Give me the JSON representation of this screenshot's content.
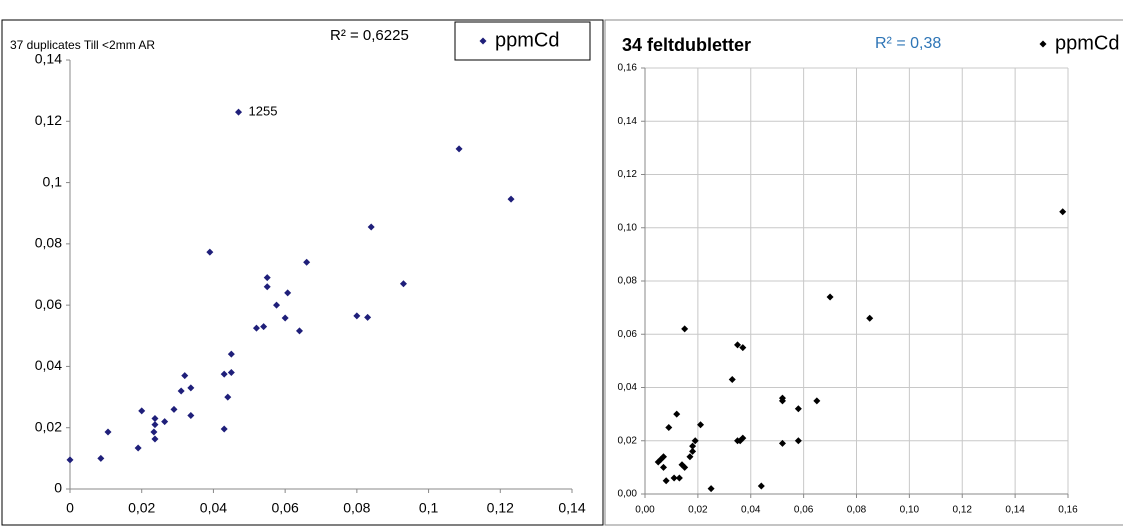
{
  "chart_data": [
    {
      "type": "scatter",
      "title": "37 duplicates Till <2mm  AR",
      "r_squared_label": "R² = 0,6225",
      "point_label": "1255",
      "grid": false,
      "series": [
        {
          "name": "ppmCd",
          "color": "#1f1f7a",
          "x": [
            0,
            0.0086,
            0.0106,
            0.019,
            0.02,
            0.0234,
            0.0237,
            0.0237,
            0.0237,
            0.0264,
            0.029,
            0.031,
            0.032,
            0.0337,
            0.0337,
            0.039,
            0.043,
            0.043,
            0.044,
            0.045,
            0.045,
            0.047,
            0.052,
            0.054,
            0.055,
            0.055,
            0.0576,
            0.06,
            0.0607,
            0.064,
            0.066,
            0.08,
            0.083,
            0.084,
            0.093,
            0.1085,
            0.123
          ],
          "values": [
            0.0095,
            0.01,
            0.0186,
            0.0134,
            0.0255,
            0.0186,
            0.021,
            0.023,
            0.0163,
            0.022,
            0.026,
            0.032,
            0.037,
            0.033,
            0.024,
            0.0773,
            0.0196,
            0.0375,
            0.03,
            0.038,
            0.044,
            0.123,
            0.0525,
            0.053,
            0.069,
            0.066,
            0.06,
            0.0558,
            0.064,
            0.0516,
            0.074,
            0.0565,
            0.056,
            0.0855,
            0.067,
            0.111,
            0.0946
          ]
        }
      ],
      "xlim": [
        0,
        0.14
      ],
      "ylim": [
        0,
        0.14
      ],
      "xticks": [
        0,
        {
          "value": 0.02,
          "label": "0,02"
        },
        {
          "value": 0.04,
          "label": "0,04"
        },
        {
          "value": 0.06,
          "label": "0,06"
        },
        {
          "value": 0.08,
          "label": "0,08"
        },
        {
          "value": 0.1,
          "label": "0,1"
        },
        {
          "value": 0.12,
          "label": "0,12"
        },
        {
          "value": 0.14,
          "label": "0,14"
        }
      ],
      "yticks": [
        0,
        {
          "value": 0.02,
          "label": "0,02"
        },
        {
          "value": 0.04,
          "label": "0,04"
        },
        {
          "value": 0.06,
          "label": "0,06"
        },
        {
          "value": 0.08,
          "label": "0,08"
        },
        {
          "value": 0.1,
          "label": "0,1"
        },
        {
          "value": 0.12,
          "label": "0,12"
        },
        {
          "value": 0.14,
          "label": "0,14"
        }
      ]
    },
    {
      "type": "scatter",
      "title": "34 feltdubletter",
      "r_squared_label": "R² = 0,38",
      "grid": true,
      "series": [
        {
          "name": "ppmCd",
          "color": "#000000",
          "x": [
            0.005,
            0.006,
            0.007,
            0.007,
            0.008,
            0.009,
            0.011,
            0.012,
            0.013,
            0.014,
            0.015,
            0.015,
            0.017,
            0.018,
            0.018,
            0.019,
            0.021,
            0.025,
            0.033,
            0.035,
            0.035,
            0.036,
            0.037,
            0.037,
            0.044,
            0.052,
            0.052,
            0.052,
            0.058,
            0.058,
            0.065,
            0.07,
            0.085,
            0.158
          ],
          "values": [
            0.012,
            0.013,
            0.014,
            0.01,
            0.005,
            0.025,
            0.006,
            0.03,
            0.006,
            0.011,
            0.01,
            0.062,
            0.014,
            0.016,
            0.018,
            0.02,
            0.026,
            0.002,
            0.043,
            0.056,
            0.02,
            0.02,
            0.055,
            0.021,
            0.003,
            0.036,
            0.035,
            0.019,
            0.02,
            0.032,
            0.035,
            0.074,
            0.066,
            0.106
          ]
        }
      ],
      "xlim": [
        0,
        0.16
      ],
      "ylim": [
        0,
        0.16
      ],
      "xticks": [
        {
          "value": 0,
          "label": "0,00"
        },
        {
          "value": 0.02,
          "label": "0,02"
        },
        {
          "value": 0.04,
          "label": "0,04"
        },
        {
          "value": 0.06,
          "label": "0,06"
        },
        {
          "value": 0.08,
          "label": "0,08"
        },
        {
          "value": 0.1,
          "label": "0,10"
        },
        {
          "value": 0.12,
          "label": "0,12"
        },
        {
          "value": 0.14,
          "label": "0,14"
        },
        {
          "value": 0.16,
          "label": "0,16"
        }
      ],
      "yticks": [
        {
          "value": 0,
          "label": "0,00"
        },
        {
          "value": 0.02,
          "label": "0,02"
        },
        {
          "value": 0.04,
          "label": "0,04"
        },
        {
          "value": 0.06,
          "label": "0,06"
        },
        {
          "value": 0.08,
          "label": "0,08"
        },
        {
          "value": 0.1,
          "label": "0,10"
        },
        {
          "value": 0.12,
          "label": "0,12"
        },
        {
          "value": 0.14,
          "label": "0,14"
        },
        {
          "value": 0.16,
          "label": "0,16"
        }
      ]
    }
  ]
}
